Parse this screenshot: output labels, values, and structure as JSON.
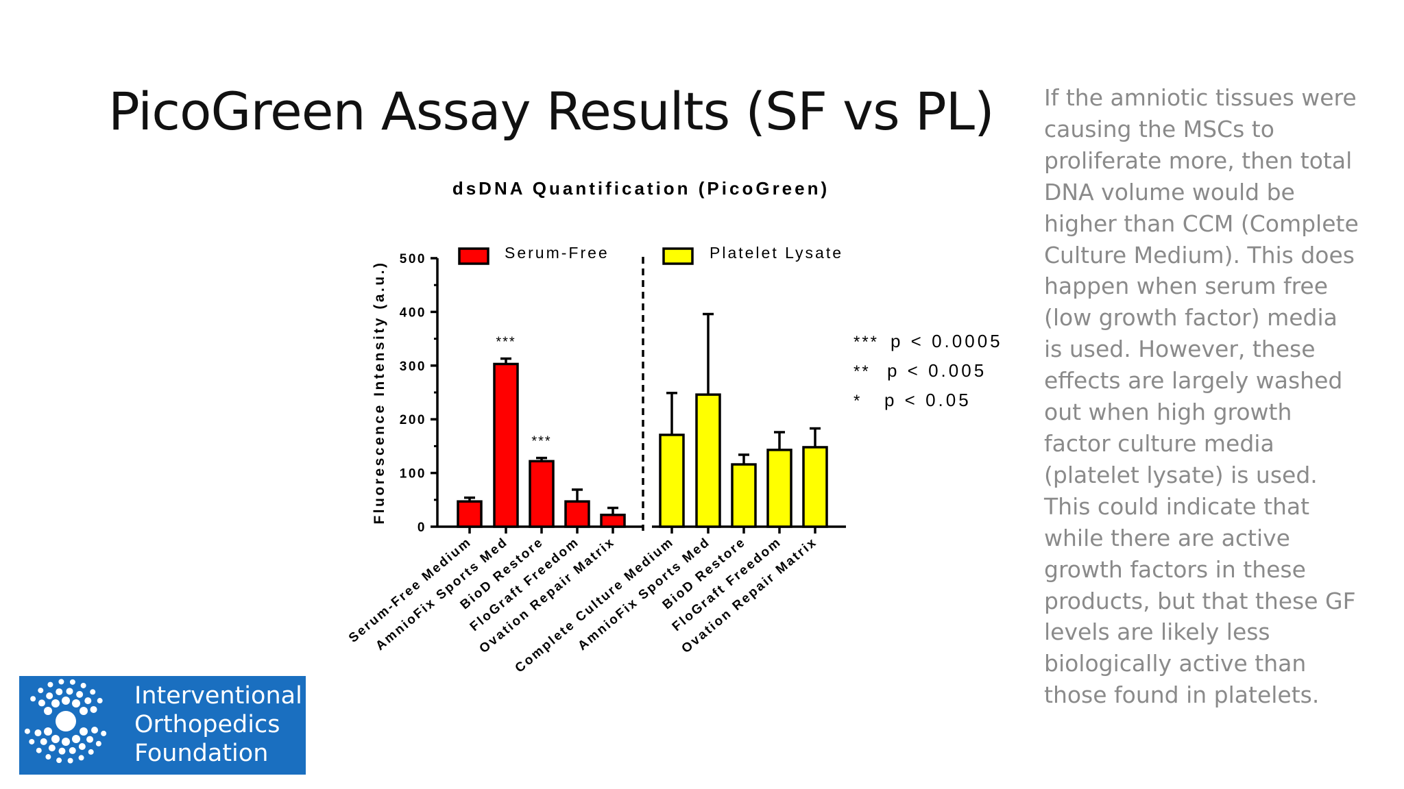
{
  "slide": {
    "title": "PicoGreen Assay Results (SF vs PL)",
    "notes": [
      "If the amniotic tissues were",
      "causing the MSCs to",
      "proliferate more, then total",
      "DNA volume would be",
      "higher than CCM (Complete",
      "Culture Medium). This does",
      "happen when serum free",
      "(low growth factor) media",
      "is used. However, these",
      "effects are largely washed",
      "out when high growth",
      "factor culture media",
      "(platelet lysate) is used.",
      "This could indicate that",
      "while there are active",
      "growth factors in these",
      "products, but that these GF",
      "levels are likely less",
      "biologically active than",
      "those found in platelets."
    ]
  },
  "logo": {
    "lines": [
      "Interventional",
      "Orthopedics",
      "Foundation"
    ]
  },
  "chart_data": {
    "type": "bar",
    "title": "dsDNA Quantification (PicoGreen)",
    "ylabel": "Fluorescence Intensity (a.u.)",
    "xlabel": "",
    "ylim": [
      0,
      500
    ],
    "yticks": [
      0,
      100,
      200,
      300,
      400,
      500
    ],
    "grid": false,
    "legend": "top",
    "series": [
      {
        "name": "Serum-Free",
        "color": "#ff0000",
        "categories": [
          "Serum-Free Medium",
          "AmnioFix Sports Med",
          "BioD Restore",
          "FloGraft Freedom",
          "Ovation Repair Matrix"
        ],
        "values": [
          47,
          303,
          122,
          47,
          22
        ],
        "errors": [
          7,
          10,
          6,
          22,
          13
        ],
        "significance": [
          "",
          "***",
          "***",
          "",
          ""
        ]
      },
      {
        "name": "Platelet Lysate",
        "color": "#ffff00",
        "categories": [
          "Complete Culture Medium",
          "AmnioFix Sports Med",
          "BioD Restore",
          "FloGraft Freedom",
          "Ovation Repair Matrix"
        ],
        "values": [
          171,
          246,
          116,
          143,
          148
        ],
        "errors": [
          78,
          150,
          18,
          33,
          35
        ],
        "significance": [
          "",
          "",
          "",
          "",
          ""
        ]
      }
    ],
    "significance_key": [
      {
        "stars": "***",
        "text": "p < 0.0005"
      },
      {
        "stars": "**",
        "text": "p < 0.005"
      },
      {
        "stars": "*",
        "text": "p < 0.05"
      }
    ]
  }
}
